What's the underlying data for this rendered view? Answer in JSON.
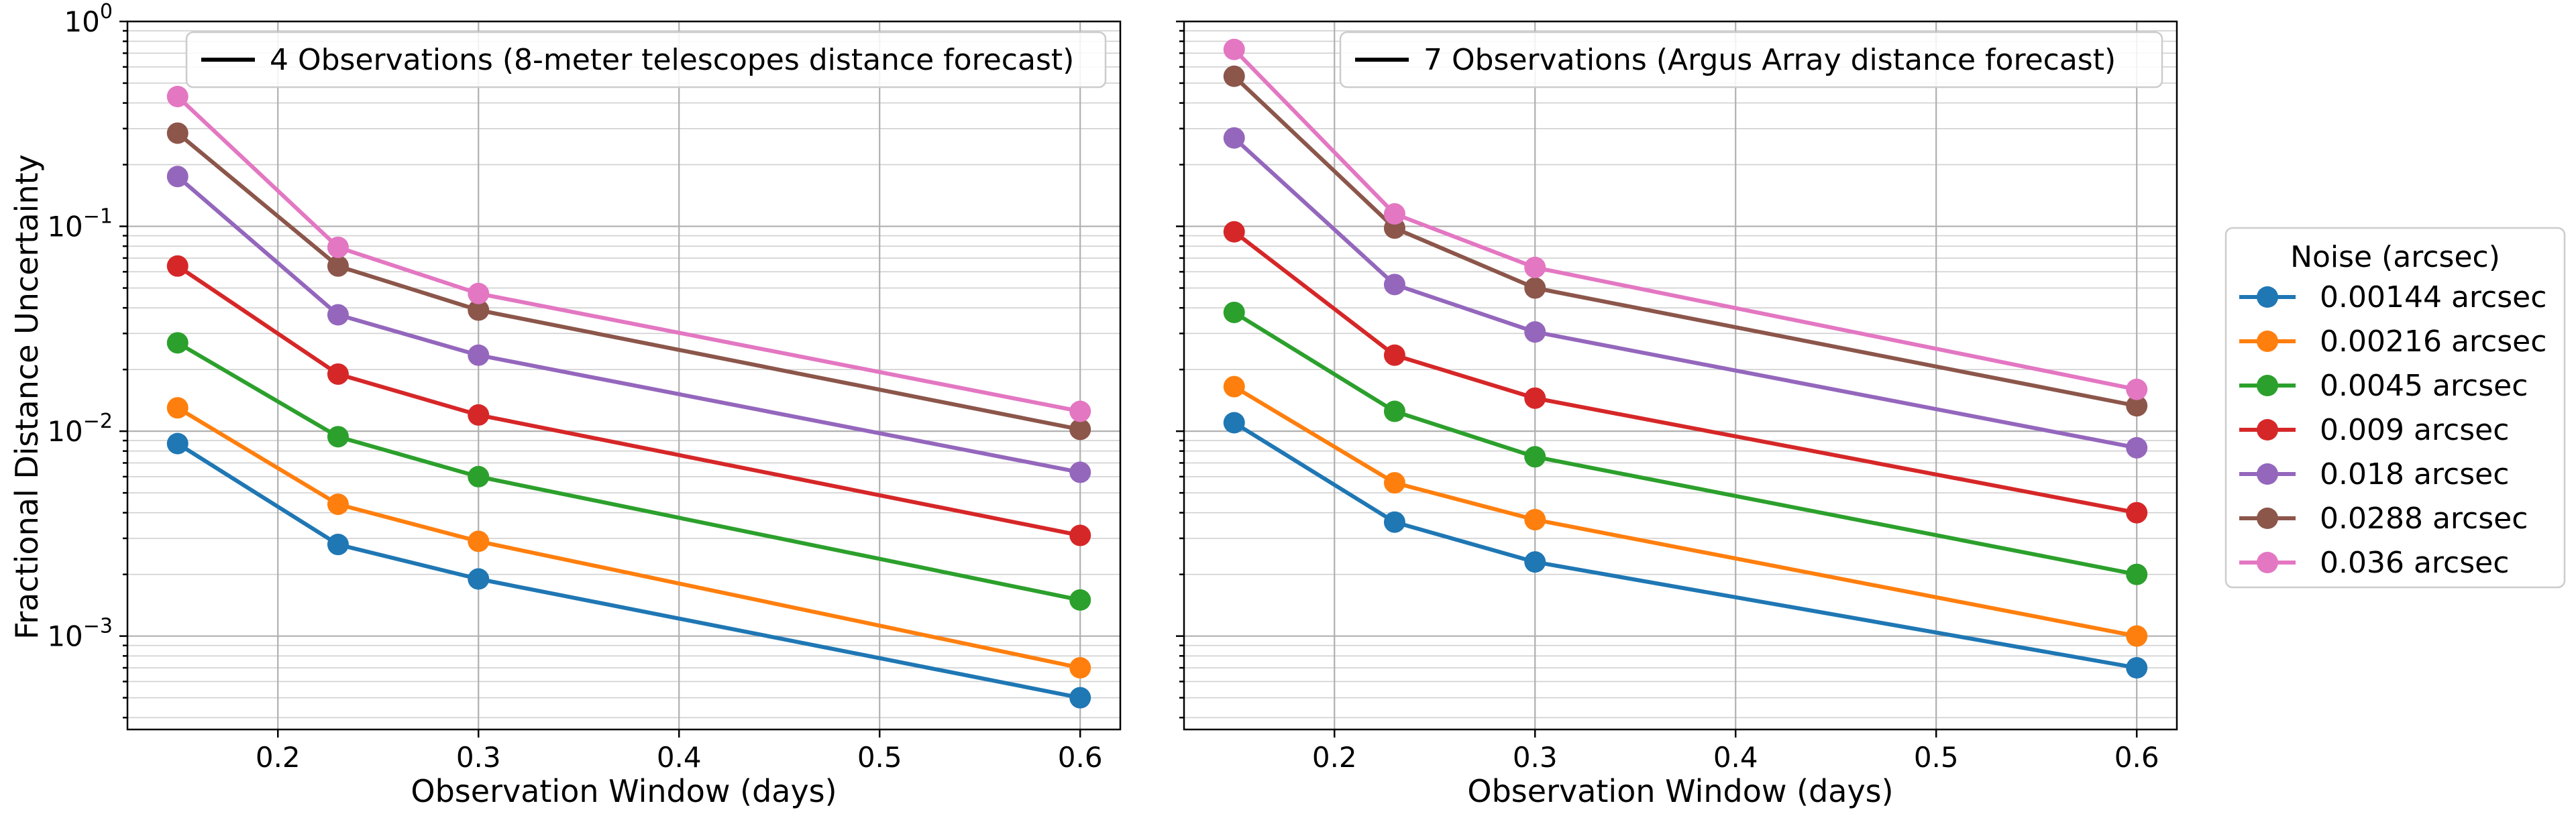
{
  "chart_data": {
    "type": "line",
    "ylabel": "Fractional Distance Uncertainty",
    "y_scale": "log",
    "ylim": [
      0.00035,
      1.0
    ],
    "xlim": [
      0.125,
      0.62
    ],
    "x_ticks": [
      0.2,
      0.3,
      0.4,
      0.5,
      0.6
    ],
    "x_tick_labels": [
      "0.2",
      "0.3",
      "0.4",
      "0.5",
      "0.6"
    ],
    "y_ticks": [
      0.001,
      0.01,
      0.1,
      1.0
    ],
    "y_tick_labels": [
      {
        "base": "10",
        "exp": "−3"
      },
      {
        "base": "10",
        "exp": "−2"
      },
      {
        "base": "10",
        "exp": "−1"
      },
      {
        "base": "10",
        "exp": "0"
      }
    ],
    "legend_title": "Noise (arcsec)",
    "series_meta": [
      {
        "name": "0.00144 arcsec",
        "color": "#1f77b4"
      },
      {
        "name": "0.00216 arcsec",
        "color": "#ff7f0e"
      },
      {
        "name": "0.0045 arcsec",
        "color": "#2ca02c"
      },
      {
        "name": "0.009 arcsec",
        "color": "#d62728"
      },
      {
        "name": "0.018 arcsec",
        "color": "#9467bd"
      },
      {
        "name": "0.0288 arcsec",
        "color": "#8c564b"
      },
      {
        "name": "0.036 arcsec",
        "color": "#e377c2"
      }
    ],
    "panels": [
      {
        "xlabel": "Observation Window (days)",
        "legend_label": "4 Observations (8-meter telescopes distance forecast)",
        "x": [
          0.15,
          0.23,
          0.3,
          0.6
        ],
        "series": [
          {
            "name": "0.00144 arcsec",
            "values": [
              0.0087,
              0.0028,
              0.0019,
              0.0005
            ]
          },
          {
            "name": "0.00216 arcsec",
            "values": [
              0.013,
              0.0044,
              0.0029,
              0.0007
            ]
          },
          {
            "name": "0.0045 arcsec",
            "values": [
              0.027,
              0.0094,
              0.006,
              0.0015
            ]
          },
          {
            "name": "0.009 arcsec",
            "values": [
              0.064,
              0.019,
              0.012,
              0.0031
            ]
          },
          {
            "name": "0.018 arcsec",
            "values": [
              0.175,
              0.037,
              0.0235,
              0.0063
            ]
          },
          {
            "name": "0.0288 arcsec",
            "values": [
              0.285,
              0.064,
              0.039,
              0.0102
            ]
          },
          {
            "name": "0.036 arcsec",
            "values": [
              0.43,
              0.079,
              0.047,
              0.0125
            ]
          }
        ]
      },
      {
        "xlabel": "Observation Window (days)",
        "legend_label": "7 Observations (Argus Array distance forecast)",
        "x": [
          0.15,
          0.23,
          0.3,
          0.6
        ],
        "series": [
          {
            "name": "0.00144 arcsec",
            "values": [
              0.011,
              0.0036,
              0.0023,
              0.0007
            ]
          },
          {
            "name": "0.00216 arcsec",
            "values": [
              0.0165,
              0.0056,
              0.0037,
              0.001
            ]
          },
          {
            "name": "0.0045 arcsec",
            "values": [
              0.038,
              0.0125,
              0.0075,
              0.002
            ]
          },
          {
            "name": "0.009 arcsec",
            "values": [
              0.094,
              0.0235,
              0.0145,
              0.004
            ]
          },
          {
            "name": "0.018 arcsec",
            "values": [
              0.27,
              0.052,
              0.0305,
              0.0083
            ]
          },
          {
            "name": "0.0288 arcsec",
            "values": [
              0.54,
              0.098,
              0.05,
              0.0133
            ]
          },
          {
            "name": "0.036 arcsec",
            "values": [
              0.73,
              0.115,
              0.063,
              0.016
            ]
          }
        ]
      }
    ]
  }
}
